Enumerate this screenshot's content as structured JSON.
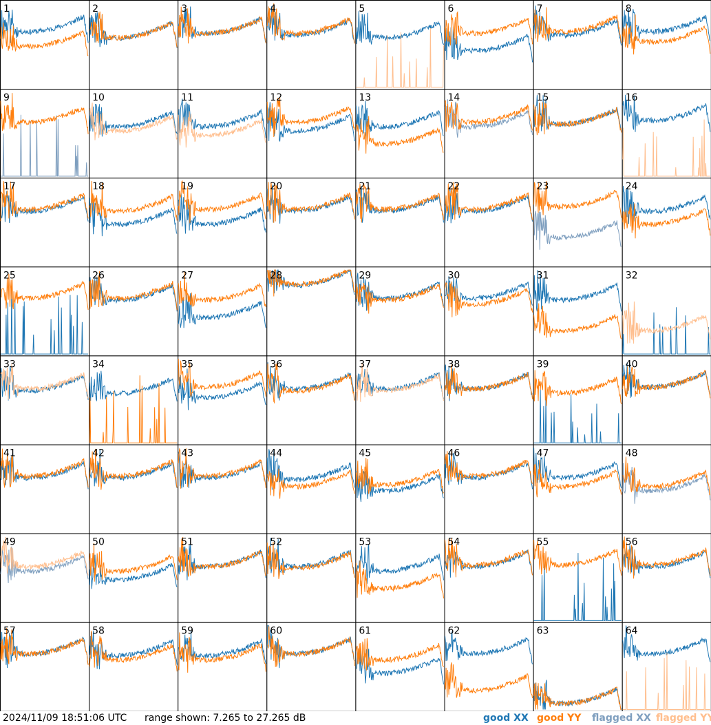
{
  "footer": {
    "timestamp": "2024/11/09 18:51:06 UTC",
    "range_text": "range shown: 7.265 to 27.265 dB"
  },
  "legend": {
    "good_xx": {
      "word": "good",
      "pol": "XX",
      "color": "#1f77b4"
    },
    "good_yy": {
      "word": "good",
      "pol": "YY",
      "color": "#ff7f0e"
    },
    "flagged_xx": {
      "word": "flagged",
      "pol": "XX",
      "color": "#7f9fbf"
    },
    "flagged_yy": {
      "word": "flagged",
      "pol": "YY",
      "color": "#ffbf8f"
    }
  },
  "chart_data": {
    "type": "line",
    "grid": "8x8 small multiples",
    "ylim_db": [
      7.265,
      27.265
    ],
    "panels": [
      {
        "id": "1",
        "xx": "good",
        "yy": "good",
        "yy_level": 0.55,
        "xx_level": 0.72
      },
      {
        "id": "2",
        "xx": "good",
        "yy": "good",
        "yy_level": 0.65,
        "xx_level": 0.65
      },
      {
        "id": "3",
        "xx": "good",
        "yy": "good",
        "yy_level": 0.7,
        "xx_level": 0.7
      },
      {
        "id": "4",
        "xx": "good",
        "yy": "good",
        "yy_level": 0.7,
        "xx_level": 0.68
      },
      {
        "id": "5",
        "xx": "good",
        "yy": "flagged",
        "yy_level": 0.05,
        "xx_level": 0.65
      },
      {
        "id": "6",
        "xx": "good",
        "yy": "good",
        "yy_level": 0.7,
        "xx_level": 0.5
      },
      {
        "id": "7",
        "xx": "good",
        "yy": "good",
        "yy_level": 0.72,
        "xx_level": 0.68
      },
      {
        "id": "8",
        "xx": "good",
        "yy": "good",
        "yy_level": 0.6,
        "xx_level": 0.72
      },
      {
        "id": "9",
        "xx": "flagged",
        "yy": "good",
        "yy_level": 0.7,
        "xx_level": 0.1
      },
      {
        "id": "10",
        "xx": "good",
        "yy": "flagged",
        "yy_level": 0.6,
        "xx_level": 0.65
      },
      {
        "id": "11",
        "xx": "good",
        "yy": "flagged",
        "yy_level": 0.55,
        "xx_level": 0.65
      },
      {
        "id": "12",
        "xx": "good",
        "yy": "good",
        "yy_level": 0.7,
        "xx_level": 0.6
      },
      {
        "id": "13",
        "xx": "good",
        "yy": "good",
        "yy_level": 0.45,
        "xx_level": 0.65
      },
      {
        "id": "14",
        "xx": "flagged",
        "yy": "good",
        "yy_level": 0.7,
        "xx_level": 0.65
      },
      {
        "id": "15",
        "xx": "good",
        "yy": "good",
        "yy_level": 0.68,
        "xx_level": 0.68
      },
      {
        "id": "16",
        "xx": "good",
        "yy": "flagged",
        "yy_level": 0.02,
        "xx_level": 0.72
      },
      {
        "id": "17",
        "xx": "good",
        "yy": "good",
        "yy_level": 0.72,
        "xx_level": 0.7
      },
      {
        "id": "18",
        "xx": "good",
        "yy": "good",
        "yy_level": 0.7,
        "xx_level": 0.55
      },
      {
        "id": "19",
        "xx": "good",
        "yy": "good",
        "yy_level": 0.72,
        "xx_level": 0.55
      },
      {
        "id": "20",
        "xx": "good",
        "yy": "good",
        "yy_level": 0.72,
        "xx_level": 0.7
      },
      {
        "id": "21",
        "xx": "good",
        "yy": "good",
        "yy_level": 0.72,
        "xx_level": 0.7
      },
      {
        "id": "22",
        "xx": "good",
        "yy": "good",
        "yy_level": 0.72,
        "xx_level": 0.7
      },
      {
        "id": "23",
        "xx": "flagged",
        "yy": "good",
        "yy_level": 0.75,
        "xx_level": 0.4
      },
      {
        "id": "24",
        "xx": "good",
        "yy": "good",
        "yy_level": 0.55,
        "xx_level": 0.7
      },
      {
        "id": "25",
        "xx": "good",
        "yy": "good",
        "yy_level": 0.72,
        "xx_level": 0.05
      },
      {
        "id": "26",
        "xx": "good",
        "yy": "good",
        "yy_level": 0.72,
        "xx_level": 0.7
      },
      {
        "id": "27",
        "xx": "good",
        "yy": "good",
        "yy_level": 0.7,
        "xx_level": 0.5
      },
      {
        "id": "28",
        "xx": "good",
        "yy": "good",
        "yy_level": 0.88,
        "xx_level": 0.87
      },
      {
        "id": "29",
        "xx": "good",
        "yy": "good",
        "yy_level": 0.7,
        "xx_level": 0.72
      },
      {
        "id": "30",
        "xx": "good",
        "yy": "good",
        "yy_level": 0.65,
        "xx_level": 0.72
      },
      {
        "id": "31",
        "xx": "good",
        "yy": "good",
        "yy_level": 0.35,
        "xx_level": 0.7
      },
      {
        "id": "32",
        "xx": "good",
        "yy": "flagged",
        "yy_level": 0.35,
        "xx_level": 0.03
      },
      {
        "id": "33",
        "xx": "good",
        "yy": "flagged",
        "yy_level": 0.7,
        "xx_level": 0.68
      },
      {
        "id": "34",
        "xx": "good",
        "yy": "good",
        "yy_level": 0.05,
        "xx_level": 0.65
      },
      {
        "id": "35",
        "xx": "good",
        "yy": "good",
        "yy_level": 0.72,
        "xx_level": 0.6
      },
      {
        "id": "36",
        "xx": "good",
        "yy": "good",
        "yy_level": 0.68,
        "xx_level": 0.7
      },
      {
        "id": "37",
        "xx": "good",
        "yy": "flagged",
        "yy_level": 0.68,
        "xx_level": 0.7
      },
      {
        "id": "38",
        "xx": "good",
        "yy": "good",
        "yy_level": 0.7,
        "xx_level": 0.7
      },
      {
        "id": "39",
        "xx": "good",
        "yy": "good",
        "yy_level": 0.65,
        "xx_level": 0.05
      },
      {
        "id": "40",
        "xx": "good",
        "yy": "good",
        "yy_level": 0.72,
        "xx_level": 0.72
      },
      {
        "id": "41",
        "xx": "good",
        "yy": "good",
        "yy_level": 0.72,
        "xx_level": 0.7
      },
      {
        "id": "42",
        "xx": "good",
        "yy": "good",
        "yy_level": 0.72,
        "xx_level": 0.7
      },
      {
        "id": "43",
        "xx": "good",
        "yy": "good",
        "yy_level": 0.72,
        "xx_level": 0.7
      },
      {
        "id": "44",
        "xx": "good",
        "yy": "good",
        "yy_level": 0.6,
        "xx_level": 0.68
      },
      {
        "id": "45",
        "xx": "good",
        "yy": "good",
        "yy_level": 0.62,
        "xx_level": 0.55
      },
      {
        "id": "46",
        "xx": "good",
        "yy": "good",
        "yy_level": 0.72,
        "xx_level": 0.7
      },
      {
        "id": "47",
        "xx": "good",
        "yy": "good",
        "yy_level": 0.6,
        "xx_level": 0.7
      },
      {
        "id": "48",
        "xx": "flagged",
        "yy": "good",
        "yy_level": 0.6,
        "xx_level": 0.55
      },
      {
        "id": "49",
        "xx": "flagged",
        "yy": "flagged",
        "yy_level": 0.7,
        "xx_level": 0.65
      },
      {
        "id": "50",
        "xx": "good",
        "yy": "good",
        "yy_level": 0.65,
        "xx_level": 0.55
      },
      {
        "id": "51",
        "xx": "good",
        "yy": "good",
        "yy_level": 0.7,
        "xx_level": 0.7
      },
      {
        "id": "52",
        "xx": "good",
        "yy": "good",
        "yy_level": 0.68,
        "xx_level": 0.7
      },
      {
        "id": "53",
        "xx": "good",
        "yy": "good",
        "yy_level": 0.45,
        "xx_level": 0.65
      },
      {
        "id": "54",
        "xx": "good",
        "yy": "good",
        "yy_level": 0.72,
        "xx_level": 0.7
      },
      {
        "id": "55",
        "xx": "good",
        "yy": "good",
        "yy_level": 0.72,
        "xx_level": 0.05
      },
      {
        "id": "56",
        "xx": "good",
        "yy": "good",
        "yy_level": 0.72,
        "xx_level": 0.7
      },
      {
        "id": "57",
        "xx": "good",
        "yy": "good",
        "yy_level": 0.72,
        "xx_level": 0.72
      },
      {
        "id": "58",
        "xx": "good",
        "yy": "good",
        "yy_level": 0.65,
        "xx_level": 0.7
      },
      {
        "id": "59",
        "xx": "good",
        "yy": "good",
        "yy_level": 0.65,
        "xx_level": 0.7
      },
      {
        "id": "60",
        "xx": "good",
        "yy": "good",
        "yy_level": 0.72,
        "xx_level": 0.72
      },
      {
        "id": "61",
        "xx": "good",
        "yy": "good",
        "yy_level": 0.65,
        "xx_level": 0.5
      },
      {
        "id": "62",
        "xx": "good",
        "yy": "good",
        "yy_level": 0.3,
        "xx_level": 0.72
      },
      {
        "id": "63",
        "xx": "good",
        "yy": "good",
        "yy_level": 0.15,
        "xx_level": 0.15
      },
      {
        "id": "64",
        "xx": "good",
        "yy": "flagged",
        "yy_level": 0.02,
        "xx_level": 0.72
      }
    ]
  }
}
